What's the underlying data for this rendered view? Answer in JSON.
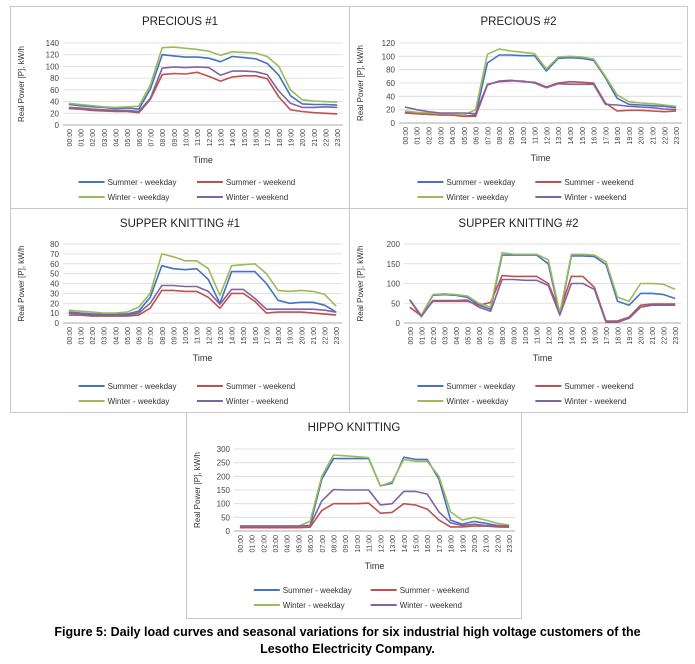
{
  "chart_data": [
    {
      "type": "line",
      "title": "PRECIOUS #1",
      "xlabel": "Time",
      "ylabel": "Real Power [P], kW/h",
      "ylim": [
        0,
        140
      ],
      "yticks": [
        0,
        20,
        40,
        60,
        80,
        100,
        120,
        140
      ],
      "categories": [
        "00:00",
        "01:00",
        "02:00",
        "03:00",
        "04:00",
        "05:00",
        "06:00",
        "07:00",
        "08:00",
        "09:00",
        "10:00",
        "11:00",
        "12:00",
        "13:00",
        "14:00",
        "15:00",
        "16:00",
        "17:00",
        "18:00",
        "19:00",
        "20:00",
        "21:00",
        "22:00",
        "23:00"
      ],
      "series": [
        {
          "name": "Summer - weekday",
          "color": "#4472c4",
          "values": [
            35,
            33,
            31,
            30,
            28,
            29,
            27,
            62,
            120,
            118,
            116,
            116,
            114,
            108,
            117,
            115,
            113,
            105,
            85,
            50,
            36,
            35,
            35,
            34
          ]
        },
        {
          "name": "Summer - weekend",
          "color": "#c0504d",
          "values": [
            28,
            27,
            25,
            24,
            23,
            23,
            21,
            44,
            86,
            88,
            87,
            90,
            83,
            75,
            82,
            84,
            84,
            79,
            48,
            26,
            23,
            21,
            20,
            19
          ]
        },
        {
          "name": "Winter - weekday",
          "color": "#9bbb59",
          "values": [
            37,
            35,
            33,
            31,
            30,
            31,
            32,
            69,
            132,
            133,
            131,
            129,
            126,
            119,
            125,
            124,
            123,
            117,
            100,
            60,
            43,
            41,
            40,
            39
          ]
        },
        {
          "name": "Winter - weekend",
          "color": "#8064a2",
          "values": [
            30,
            29,
            27,
            26,
            25,
            25,
            23,
            46,
            97,
            99,
            98,
            99,
            98,
            85,
            92,
            92,
            91,
            86,
            58,
            37,
            30,
            30,
            31,
            30
          ]
        }
      ]
    },
    {
      "type": "line",
      "title": "PRECIOUS #2",
      "xlabel": "Time",
      "ylabel": "Real Power [P], kW/h",
      "ylim": [
        0,
        120
      ],
      "yticks": [
        0,
        20,
        40,
        60,
        80,
        100,
        120
      ],
      "categories": [
        "00:00",
        "01:00",
        "02:00",
        "03:00",
        "04:00",
        "05:00",
        "06:00",
        "07:00",
        "08:00",
        "09:00",
        "10:00",
        "11:00",
        "12:00",
        "13:00",
        "14:00",
        "15:00",
        "16:00",
        "17:00",
        "18:00",
        "19:00",
        "20:00",
        "21:00",
        "22:00",
        "23:00"
      ],
      "series": [
        {
          "name": "Summer - weekday",
          "color": "#4472c4",
          "values": [
            16,
            14,
            13,
            12,
            12,
            10,
            12,
            90,
            102,
            102,
            101,
            101,
            78,
            97,
            98,
            97,
            94,
            68,
            37,
            28,
            27,
            26,
            25,
            23
          ]
        },
        {
          "name": "Summer - weekend",
          "color": "#c0504d",
          "values": [
            15,
            14,
            13,
            12,
            12,
            10,
            10,
            57,
            63,
            64,
            62,
            61,
            54,
            60,
            62,
            61,
            60,
            30,
            18,
            19,
            19,
            18,
            17,
            18
          ]
        },
        {
          "name": "Winter - weekday",
          "color": "#9bbb59",
          "values": [
            18,
            16,
            15,
            14,
            14,
            12,
            20,
            103,
            111,
            108,
            106,
            104,
            81,
            99,
            100,
            99,
            96,
            70,
            42,
            32,
            30,
            29,
            27,
            25
          ]
        },
        {
          "name": "Winter - weekend",
          "color": "#8064a2",
          "values": [
            24,
            20,
            17,
            15,
            15,
            15,
            14,
            58,
            62,
            63,
            63,
            60,
            53,
            59,
            58,
            58,
            58,
            28,
            27,
            25,
            24,
            23,
            21,
            20
          ]
        }
      ]
    },
    {
      "type": "line",
      "title": "SUPPER KNITTING #1",
      "xlabel": "Time",
      "ylabel": "Real Power [P], kW/h",
      "ylim": [
        0,
        80
      ],
      "yticks": [
        0,
        10,
        20,
        30,
        40,
        50,
        60,
        70,
        80
      ],
      "categories": [
        "00:00",
        "01:00",
        "02:00",
        "03:00",
        "04:00",
        "05:00",
        "06:00",
        "07:00",
        "08:00",
        "09:00",
        "10:00",
        "11:00",
        "12:00",
        "13:00",
        "14:00",
        "15:00",
        "16:00",
        "17:00",
        "18:00",
        "19:00",
        "20:00",
        "21:00",
        "22:00",
        "23:00"
      ],
      "series": [
        {
          "name": "Summer - weekday",
          "color": "#4472c4",
          "values": [
            11,
            10,
            9,
            9,
            9,
            9,
            12,
            26,
            58,
            55,
            54,
            55,
            44,
            20,
            52,
            52,
            52,
            40,
            23,
            20,
            21,
            21,
            18,
            11
          ]
        },
        {
          "name": "Summer - weekend",
          "color": "#c0504d",
          "values": [
            8,
            8,
            7,
            7,
            7,
            7,
            8,
            15,
            33,
            33,
            32,
            32,
            26,
            15,
            30,
            30,
            22,
            10,
            11,
            11,
            11,
            10,
            9,
            8
          ]
        },
        {
          "name": "Winter - weekday",
          "color": "#9bbb59",
          "values": [
            13,
            12,
            11,
            10,
            10,
            11,
            16,
            30,
            70,
            67,
            63,
            63,
            55,
            28,
            58,
            59,
            60,
            50,
            33,
            32,
            33,
            32,
            29,
            17
          ]
        },
        {
          "name": "Winter - weekend",
          "color": "#8064a2",
          "values": [
            10,
            9,
            8,
            8,
            8,
            8,
            10,
            20,
            38,
            38,
            37,
            37,
            32,
            19,
            34,
            34,
            25,
            14,
            14,
            14,
            14,
            14,
            13,
            11
          ]
        }
      ]
    },
    {
      "type": "line",
      "title": "SUPPER KNITTING #2",
      "xlabel": "Time",
      "ylabel": "Real Power [P], kW/h",
      "ylim": [
        0,
        200
      ],
      "yticks": [
        0,
        50,
        100,
        150,
        200
      ],
      "categories": [
        "00:00",
        "01:00",
        "02:00",
        "03:00",
        "04:00",
        "05:00",
        "06:00",
        "07:00",
        "08:00",
        "09:00",
        "10:00",
        "11:00",
        "12:00",
        "13:00",
        "14:00",
        "15:00",
        "16:00",
        "17:00",
        "18:00",
        "19:00",
        "20:00",
        "21:00",
        "22:00",
        "23:00"
      ],
      "series": [
        {
          "name": "Summer - weekday",
          "color": "#4472c4",
          "values": [
            58,
            18,
            70,
            72,
            70,
            65,
            45,
            35,
            172,
            172,
            172,
            172,
            150,
            20,
            170,
            170,
            168,
            148,
            55,
            45,
            75,
            75,
            72,
            62
          ]
        },
        {
          "name": "Summer - weekend",
          "color": "#c0504d",
          "values": [
            40,
            18,
            55,
            55,
            55,
            55,
            45,
            52,
            120,
            118,
            118,
            118,
            100,
            30,
            118,
            118,
            90,
            5,
            5,
            15,
            45,
            48,
            48,
            48
          ]
        },
        {
          "name": "Winter - weekday",
          "color": "#9bbb59",
          "values": [
            60,
            20,
            72,
            74,
            72,
            68,
            50,
            40,
            178,
            174,
            174,
            174,
            160,
            25,
            174,
            174,
            172,
            155,
            65,
            55,
            100,
            100,
            98,
            85
          ]
        },
        {
          "name": "Winter - weekend",
          "color": "#8064a2",
          "values": [
            58,
            16,
            57,
            57,
            57,
            58,
            40,
            30,
            110,
            110,
            108,
            108,
            95,
            20,
            100,
            100,
            85,
            2,
            2,
            12,
            40,
            45,
            45,
            45
          ]
        }
      ]
    },
    {
      "type": "line",
      "title": "HIPPO KNITTING",
      "xlabel": "Time",
      "ylabel": "Real Power [P], kW/h",
      "ylim": [
        0,
        300
      ],
      "yticks": [
        0,
        50,
        100,
        150,
        200,
        250,
        300
      ],
      "categories": [
        "00:00",
        "01:00",
        "02:00",
        "03:00",
        "04:00",
        "05:00",
        "06:00",
        "07:00",
        "08:00",
        "09:00",
        "10:00",
        "11:00",
        "12:00",
        "13:00",
        "14:00",
        "15:00",
        "16:00",
        "17:00",
        "18:00",
        "19:00",
        "20:00",
        "21:00",
        "22:00",
        "23:00"
      ],
      "series": [
        {
          "name": "Summer - weekday",
          "color": "#4472c4",
          "values": [
            18,
            18,
            18,
            18,
            18,
            18,
            20,
            190,
            265,
            265,
            265,
            265,
            165,
            175,
            270,
            262,
            262,
            190,
            40,
            25,
            35,
            28,
            20,
            18
          ]
        },
        {
          "name": "Summer - weekend",
          "color": "#c0504d",
          "values": [
            12,
            12,
            12,
            12,
            12,
            12,
            14,
            75,
            100,
            100,
            100,
            102,
            65,
            68,
            100,
            95,
            80,
            40,
            15,
            15,
            18,
            18,
            15,
            14
          ]
        },
        {
          "name": "Winter - weekday",
          "color": "#9bbb59",
          "values": [
            18,
            18,
            18,
            18,
            18,
            18,
            35,
            200,
            278,
            275,
            272,
            268,
            165,
            180,
            262,
            255,
            255,
            200,
            70,
            40,
            50,
            40,
            28,
            22
          ]
        },
        {
          "name": "Winter - weekend",
          "color": "#8064a2",
          "values": [
            18,
            18,
            18,
            18,
            18,
            18,
            20,
            110,
            152,
            150,
            150,
            150,
            95,
            100,
            145,
            145,
            135,
            70,
            30,
            20,
            25,
            20,
            20,
            18
          ]
        }
      ]
    }
  ],
  "figure_caption": {
    "line1": "Figure 5: Daily load curves and seasonal variations for six industrial high voltage customers of the",
    "line2": "Lesotho Electricity Company."
  }
}
